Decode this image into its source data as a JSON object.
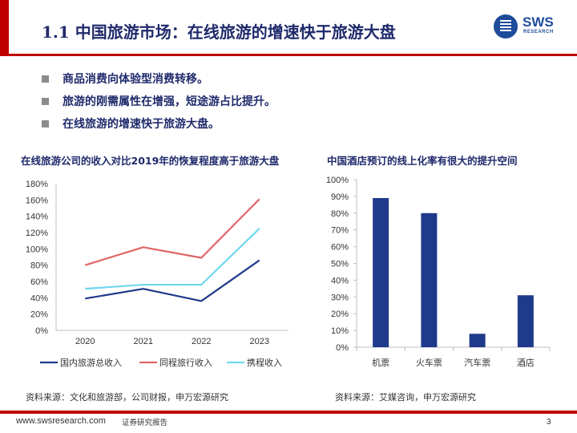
{
  "header": {
    "title": "1.1 中国旅游市场：在线旅游的增速快于旅游大盘",
    "logo_text": "SWS",
    "logo_sub": "RESEARCH"
  },
  "bullets": [
    "商品消费向体验型消费转移。",
    "旅游的刚需属性在增强，短途游占比提升。",
    "在线旅游的增速快于旅游大盘。"
  ],
  "colors": {
    "brand_red": "#C00000",
    "title_navy": "#1F2A6B",
    "series_navy": "#1F3A8A",
    "series_red": "#E06666",
    "series_cyan": "#6FD8EE",
    "bar_blue": "#1F3A8A"
  },
  "chart_data": [
    {
      "type": "line",
      "title": "在线旅游公司的收入对比2019年的恢复程度高于旅游大盘",
      "x": [
        "2020",
        "2021",
        "2022",
        "2023"
      ],
      "ylim": [
        0,
        180
      ],
      "yticks": [
        "0%",
        "20%",
        "40%",
        "60%",
        "80%",
        "100%",
        "120%",
        "140%",
        "160%",
        "180%"
      ],
      "grid": false,
      "legend_position": "bottom",
      "series": [
        {
          "name": "国内旅游总收入",
          "values": [
            39,
            51,
            36,
            86
          ]
        },
        {
          "name": "同程旅行收入",
          "values": [
            80,
            102,
            89,
            161
          ]
        },
        {
          "name": "携程收入",
          "values": [
            51,
            56,
            56,
            125
          ]
        }
      ]
    },
    {
      "type": "bar",
      "title": "中国酒店预订的线上化率有很大的提升空间",
      "categories": [
        "机票",
        "火车票",
        "汽车票",
        "酒店"
      ],
      "values": [
        89,
        80,
        8,
        31
      ],
      "ylim": [
        0,
        100
      ],
      "yticks": [
        "0%",
        "10%",
        "20%",
        "30%",
        "40%",
        "50%",
        "60%",
        "70%",
        "80%",
        "90%",
        "100%"
      ],
      "grid": false,
      "legend_position": "none"
    }
  ],
  "sources": {
    "left": "资料来源：文化和旅游部，公司财报，申万宏源研究",
    "right": "资料来源：艾媒咨询，申万宏源研究"
  },
  "footer": {
    "url": "www.swsresearch.com",
    "note": "证券研究报告",
    "page": "3"
  }
}
